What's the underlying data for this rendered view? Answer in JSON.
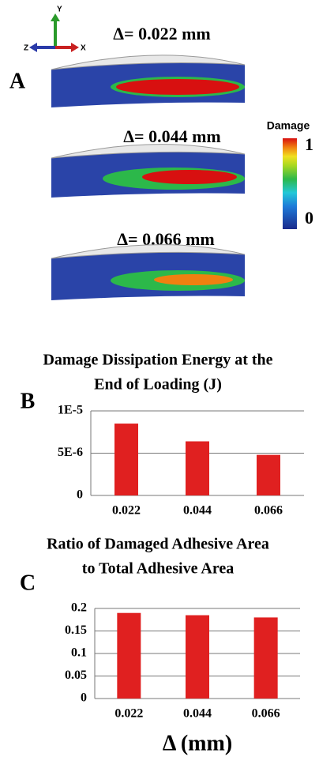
{
  "panel_a": {
    "label": "A",
    "triad": {
      "y": "Y",
      "z": "Z",
      "x": "X"
    },
    "captions": [
      "Δ= 0.022 mm",
      "Δ= 0.044 mm",
      "Δ= 0.066 mm"
    ],
    "legend": {
      "title": "Damage",
      "max": "1",
      "min": "0"
    }
  },
  "chart_data": [
    {
      "type": "bar",
      "panel": "B",
      "title": [
        "Damage Dissipation Energy at the",
        "End of Loading  (J)"
      ],
      "categories": [
        "0.022",
        "0.044",
        "0.066"
      ],
      "values": [
        8.5e-06,
        6.4e-06,
        4.8e-06
      ],
      "color": "#e02020",
      "ylim": [
        0,
        1e-05
      ],
      "yticks": [
        0,
        {
          "value": 5e-06,
          "label": "5E-6"
        },
        {
          "value": 1e-05,
          "label": "1E-5"
        }
      ],
      "grid": true
    },
    {
      "type": "bar",
      "panel": "C",
      "title": [
        "Ratio of Damaged Adhesive Area",
        "to Total Adhesive Area"
      ],
      "categories": [
        "0.022",
        "0.044",
        "0.066"
      ],
      "values": [
        0.19,
        0.185,
        0.18
      ],
      "color": "#e02020",
      "ylim": [
        0,
        0.2
      ],
      "yticks": [
        0,
        0.05,
        0.1,
        0.15,
        0.2
      ],
      "grid": true,
      "xlabel": "Δ (mm)"
    }
  ]
}
